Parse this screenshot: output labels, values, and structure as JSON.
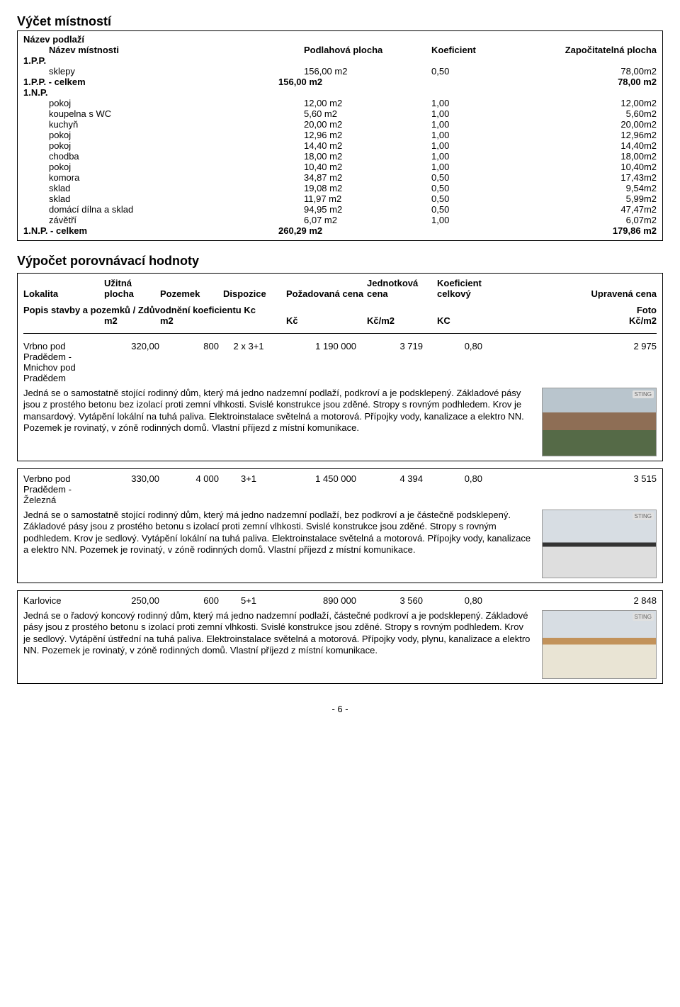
{
  "rooms_section": {
    "title": "Výčet místností",
    "header": {
      "c1": "Název podlaží",
      "c1b": "Název místnosti",
      "c2": "Podlahová plocha",
      "c3": "Koeficient",
      "c4": "Započitatelná plocha"
    },
    "floors": [
      {
        "name": "1.P.P.",
        "rooms": [
          {
            "name": "sklepy",
            "area": "156,00 m2",
            "coef": "0,50",
            "calc": "78,00m2"
          }
        ],
        "sum": {
          "label": "1.P.P. - celkem",
          "area": "156,00 m2",
          "calc": "78,00 m2"
        }
      },
      {
        "name": "1.N.P.",
        "rooms": [
          {
            "name": "pokoj",
            "area": "12,00 m2",
            "coef": "1,00",
            "calc": "12,00m2"
          },
          {
            "name": "koupelna s WC",
            "area": "5,60 m2",
            "coef": "1,00",
            "calc": "5,60m2"
          },
          {
            "name": "kuchyň",
            "area": "20,00 m2",
            "coef": "1,00",
            "calc": "20,00m2"
          },
          {
            "name": "pokoj",
            "area": "12,96 m2",
            "coef": "1,00",
            "calc": "12,96m2"
          },
          {
            "name": "pokoj",
            "area": "14,40 m2",
            "coef": "1,00",
            "calc": "14,40m2"
          },
          {
            "name": "chodba",
            "area": "18,00 m2",
            "coef": "1,00",
            "calc": "18,00m2"
          },
          {
            "name": "pokoj",
            "area": "10,40 m2",
            "coef": "1,00",
            "calc": "10,40m2"
          },
          {
            "name": "komora",
            "area": "34,87 m2",
            "coef": "0,50",
            "calc": "17,43m2"
          },
          {
            "name": "sklad",
            "area": "19,08 m2",
            "coef": "0,50",
            "calc": "9,54m2"
          },
          {
            "name": "sklad",
            "area": "11,97 m2",
            "coef": "0,50",
            "calc": "5,99m2"
          },
          {
            "name": "domácí dílna a sklad",
            "area": "94,95 m2",
            "coef": "0,50",
            "calc": "47,47m2"
          },
          {
            "name": "závětří",
            "area": "6,07 m2",
            "coef": "1,00",
            "calc": "6,07m2"
          }
        ],
        "sum": {
          "label": "1.N.P. - celkem",
          "area": "260,29 m2",
          "calc": "179,86 m2"
        }
      }
    ]
  },
  "calc_section": {
    "title": "Výpočet porovnávací hodnoty",
    "head": {
      "c1": "Lokalita",
      "c2": "Užitná plocha",
      "c3": "Pozemek",
      "c4": "Dispozice",
      "c5": "Požadovaná cena",
      "c6": "Jednotková cena",
      "c7": "Koeficient celkový",
      "c8": "Upravená cena"
    },
    "sub": {
      "label": "Popis stavby a pozemků / Zdůvodnění koeficientu Kc",
      "u2": "m2",
      "u3": "m2",
      "u5": "Kč",
      "u6": "Kč/m2",
      "u7": "KC",
      "u8": "Foto",
      "u8b": "Kč/m2"
    },
    "cards": [
      {
        "loc": "Vrbno pod Pradědem - Mnichov pod Pradědem",
        "area": "320,00",
        "land": "800",
        "disp": "2 x 3+1",
        "price": "1 190 000",
        "unit": "3 719",
        "coef": "0,80",
        "adj": "2 975",
        "text": "Jedná se o samostatně stojící rodinný dům, který má jedno nadzemní podlaží, podkroví a je  podsklepený. Základové pásy jsou z prostého betonu bez izolací proti zemní vlhkosti. Svislé konstrukce jsou zděné. Stropy s rovným podhledem. Krov je mansardový. Vytápění lokální na tuhá paliva. Elektroinstalace světelná a motorová. Přípojky vody, kanalizace a elektro NN. Pozemek je rovinatý, v zóně rodinných domů. Vlastní příjezd z místní komunikace.",
        "badge": "STING"
      },
      {
        "loc": "Verbno pod Pradědem - Železná",
        "area": "330,00",
        "land": "4 000",
        "disp": "3+1",
        "price": "1 450 000",
        "unit": "4 394",
        "coef": "0,80",
        "adj": "3 515",
        "text": "Jedná se o samostatně stojící rodinný dům, který má jedno nadzemní podlaží, bez podkroví a je částečně podsklepený. Základové pásy jsou z prostého betonu s izolací proti zemní vlhkosti. Svislé konstrukce jsou zděné. Stropy s rovným podhledem. Krov je sedlový. Vytápění lokální na tuhá paliva. Elektroinstalace světelná a motorová. Přípojky vody, kanalizace a elektro NN. Pozemek je rovinatý, v zóně rodinných domů. Vlastní příjezd z místní komunikace.",
        "badge": "STING"
      },
      {
        "loc": "Karlovice",
        "area": "250,00",
        "land": "600",
        "disp": "5+1",
        "price": "890 000",
        "unit": "3 560",
        "coef": "0,80",
        "adj": "2 848",
        "text": "Jedná se o řadový koncový rodinný dům, který má jedno nadzemní podlaží, částečné podkroví a je  podsklepený. Základové pásy jsou z prostého betonu s izolací proti zemní vlhkosti. Svislé konstrukce jsou zděné. Stropy s rovným podhledem. Krov je sedlový. Vytápění ústřední na tuhá paliva. Elektroinstalace světelná a motorová. Přípojky vody, plynu, kanalizace a elektro NN. Pozemek je rovinatý, v zóně rodinných domů. Vlastní příjezd z místní komunikace.",
        "badge": "STING"
      }
    ]
  },
  "footer": "- 6 -"
}
